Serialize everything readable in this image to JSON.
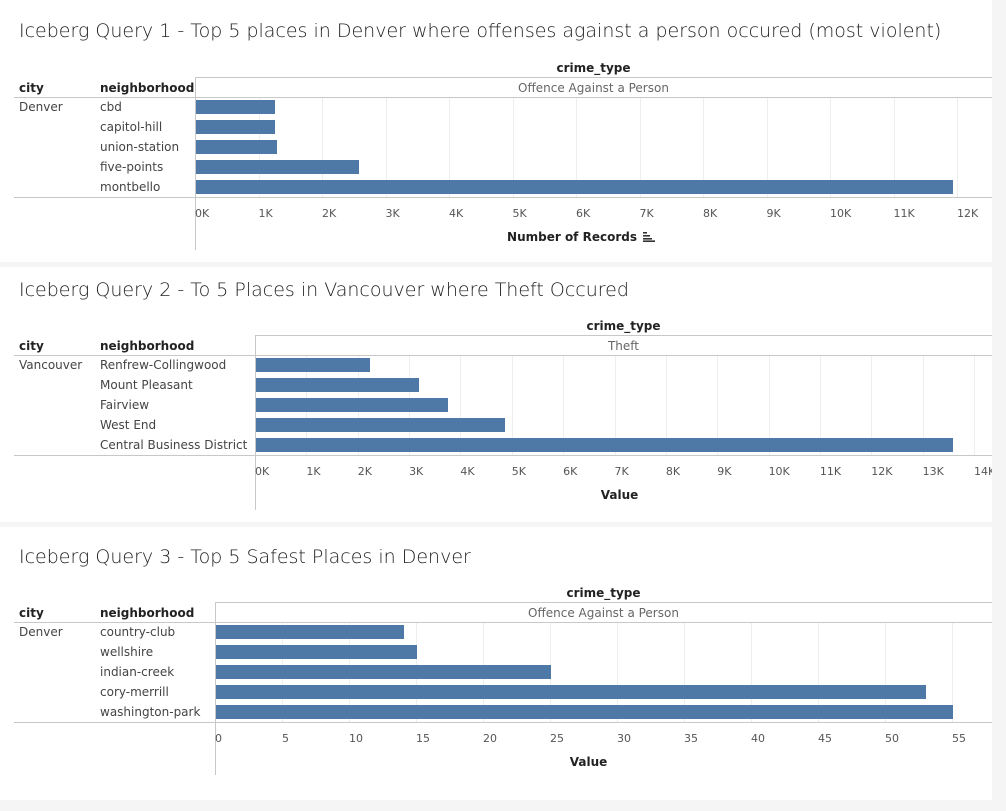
{
  "chart_data": [
    {
      "type": "bar",
      "orientation": "horizontal",
      "title": "Iceberg Query 1 - Top 5 places in Denver where offenses against a person occured (most violent)",
      "column_headers": {
        "city": "city",
        "neighborhood": "neighborhood",
        "crime_type": "crime_type"
      },
      "crime_type_value": "Offence Against a Person",
      "city": "Denver",
      "categories": [
        "cbd",
        "capitol-hill",
        "union-station",
        "five-points",
        "montbello"
      ],
      "values": [
        1250,
        1250,
        1280,
        2570,
        11920
      ],
      "xlabel": "Number of Records",
      "xlim": [
        0,
        12000
      ],
      "ticks": [
        0,
        1000,
        2000,
        3000,
        4000,
        5000,
        6000,
        7000,
        8000,
        9000,
        10000,
        11000,
        12000
      ],
      "tick_labels": [
        "0K",
        "1K",
        "2K",
        "3K",
        "4K",
        "5K",
        "6K",
        "7K",
        "8K",
        "9K",
        "10K",
        "11K",
        "12K"
      ],
      "sort_icon": "sort-descending-icon",
      "grid": true
    },
    {
      "type": "bar",
      "orientation": "horizontal",
      "title": "Iceberg Query 2 - To 5 Places in Vancouver where Theft Occured",
      "column_headers": {
        "city": "city",
        "neighborhood": "neighborhood",
        "crime_type": "crime_type"
      },
      "crime_type_value": "Theft",
      "city": "Vancouver",
      "categories": [
        "Renfrew-Collingwood",
        "Mount Pleasant",
        "Fairview",
        "West End",
        "Central Business District"
      ],
      "values": [
        2220,
        3170,
        3740,
        4850,
        13580
      ],
      "xlabel": "Value",
      "xlim": [
        0,
        14000
      ],
      "ticks": [
        0,
        1000,
        2000,
        3000,
        4000,
        5000,
        6000,
        7000,
        8000,
        9000,
        10000,
        11000,
        12000,
        13000,
        14000
      ],
      "tick_labels": [
        "0K",
        "1K",
        "2K",
        "3K",
        "4K",
        "5K",
        "6K",
        "7K",
        "8K",
        "9K",
        "10K",
        "11K",
        "12K",
        "13K",
        "14K"
      ],
      "grid": true
    },
    {
      "type": "bar",
      "orientation": "horizontal",
      "title": "Iceberg Query 3 - Top 5 Safest Places in Denver",
      "column_headers": {
        "city": "city",
        "neighborhood": "neighborhood",
        "crime_type": "crime_type"
      },
      "crime_type_value": "Offence Against a Person",
      "city": "Denver",
      "categories": [
        "country-club",
        "wellshire",
        "indian-creek",
        "cory-merrill",
        "washington-park"
      ],
      "values": [
        14,
        15,
        25,
        53,
        55
      ],
      "xlabel": "Value",
      "xlim": [
        0,
        55
      ],
      "ticks": [
        0,
        5,
        10,
        15,
        20,
        25,
        30,
        35,
        40,
        45,
        50,
        55
      ],
      "tick_labels": [
        "0",
        "5",
        "10",
        "15",
        "20",
        "25",
        "30",
        "35",
        "40",
        "45",
        "50",
        "55"
      ],
      "grid": true
    }
  ],
  "colors": {
    "bar": "#4e79a7",
    "background": "#ffffff",
    "page": "#f5f5f5",
    "rule": "#c8c8c8",
    "grid": "#eeeeee"
  }
}
